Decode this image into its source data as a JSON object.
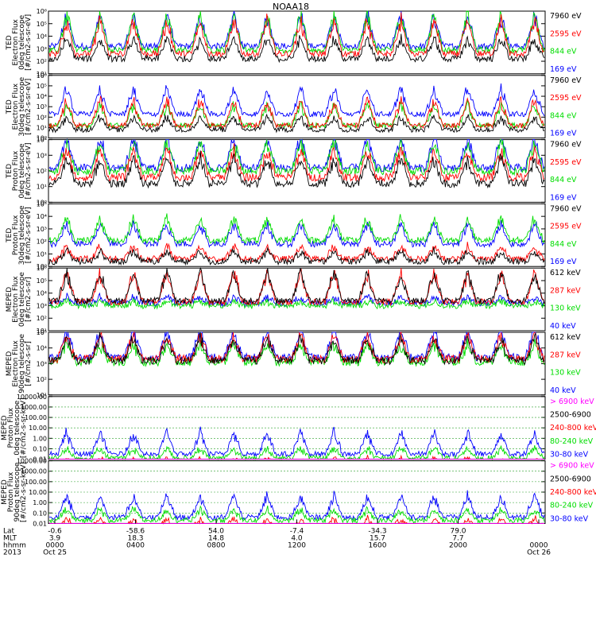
{
  "title": "NOAA18",
  "colors": {
    "black": "#000000",
    "red": "#ff0000",
    "green": "#00dd00",
    "blue": "#0000ff",
    "magenta": "#ff00ff",
    "grid": "#2aa02a"
  },
  "chart_data": [
    {
      "type": "line",
      "title": "NOAA18",
      "ylabel": [
        "TED",
        "Electron Flux",
        "0deg telescope",
        "[#/cm2-s-sr-eV]"
      ],
      "yscale": "log",
      "ylim": [
        10,
        1000000
      ],
      "yticks": [
        "10¹",
        "10²",
        "10³",
        "10⁴",
        "10⁵",
        "10⁶"
      ],
      "grid": false,
      "legend_position": "right",
      "series": [
        {
          "name": "7960 eV",
          "color": "#000000",
          "base": 1.2,
          "spike": 2.0
        },
        {
          "name": "2595 eV",
          "color": "#ff0000",
          "base": 1.6,
          "spike": 3.2
        },
        {
          "name": "844 eV",
          "color": "#00dd00",
          "base": 1.9,
          "spike": 3.5
        },
        {
          "name": "169 eV",
          "color": "#0000ff",
          "base": 2.2,
          "spike": 3.0
        }
      ]
    },
    {
      "type": "line",
      "title": "",
      "ylabel": [
        "TED",
        "Electron Flux",
        "30deg telescope",
        "[#/cm2-s-sr-eV]"
      ],
      "yscale": "log",
      "ylim": [
        1,
        1000000
      ],
      "yticks": [
        "10⁰",
        "10¹",
        "10²",
        "10³",
        "10⁴",
        "10⁵",
        "10⁶"
      ],
      "grid": false,
      "legend_position": "right",
      "series": [
        {
          "name": "7960 eV",
          "color": "#000000",
          "base": 0.8,
          "spike": 1.5
        },
        {
          "name": "2595 eV",
          "color": "#ff0000",
          "base": 1.2,
          "spike": 3.0
        },
        {
          "name": "844 eV",
          "color": "#00dd00",
          "base": 1.2,
          "spike": 2.5
        },
        {
          "name": "169 eV",
          "color": "#0000ff",
          "base": 2.3,
          "spike": 3.0
        }
      ]
    },
    {
      "type": "line",
      "title": "",
      "ylabel": [
        "TED",
        "Proton Flux",
        "0deg telescope",
        "[#/cm2-s-sr-eV]"
      ],
      "yscale": "log",
      "ylim": [
        1,
        10000
      ],
      "yticks": [
        "10⁰",
        "10¹",
        "10²",
        "10³",
        "10⁴"
      ],
      "grid": false,
      "legend_position": "right",
      "series": [
        {
          "name": "7960 eV",
          "color": "#000000",
          "base": 1.2,
          "spike": 2.0
        },
        {
          "name": "2595 eV",
          "color": "#ff0000",
          "base": 1.6,
          "spike": 2.2
        },
        {
          "name": "844 eV",
          "color": "#00dd00",
          "base": 2.0,
          "spike": 2.3
        },
        {
          "name": "169 eV",
          "color": "#0000ff",
          "base": 2.2,
          "spike": 2.4
        }
      ]
    },
    {
      "type": "line",
      "title": "",
      "ylabel": [
        "TED",
        "Proton Flux",
        "30deg telescope",
        "[#/cm2-s-sr-eV]"
      ],
      "yscale": "log",
      "ylim": [
        1,
        100000
      ],
      "yticks": [
        "10⁰",
        "10¹",
        "10²",
        "10³",
        "10⁴",
        "10⁵"
      ],
      "grid": false,
      "legend_position": "right",
      "series": [
        {
          "name": "7960 eV",
          "color": "#000000",
          "base": 0.4,
          "spike": 1.0
        },
        {
          "name": "2595 eV",
          "color": "#ff0000",
          "base": 0.6,
          "spike": 1.2
        },
        {
          "name": "844 eV",
          "color": "#00dd00",
          "base": 2.1,
          "spike": 2.2
        },
        {
          "name": "169 eV",
          "color": "#0000ff",
          "base": 1.8,
          "spike": 2.0
        }
      ]
    },
    {
      "type": "line",
      "title": "",
      "ylabel": [
        "MEPED",
        "Electron Flux",
        "0deg telescope",
        "[#/cm2-s-sr]"
      ],
      "yscale": "log",
      "ylim": [
        10,
        1000000
      ],
      "yticks": [
        "10¹",
        "10²",
        "10³",
        "10⁴",
        "10⁵",
        "10⁶"
      ],
      "grid": false,
      "legend_position": "right",
      "series": [
        {
          "name": "612 keV",
          "color": "#000000",
          "base": 2.4,
          "spike": 2.8
        },
        {
          "name": "287 keV",
          "color": "#ff0000",
          "base": 2.3,
          "spike": 2.9
        },
        {
          "name": "130 keV",
          "color": "#00dd00",
          "base": 2.0,
          "spike": 0.4
        },
        {
          "name": "40 keV",
          "color": "#0000ff",
          "base": 2.2,
          "spike": 0.6
        }
      ]
    },
    {
      "type": "line",
      "title": "",
      "ylabel": [
        "MEPED",
        "Electron Flux",
        "90deg telescope",
        "[#/cm2-s-sr]"
      ],
      "yscale": "log",
      "ylim": [
        10,
        100000
      ],
      "yticks": [
        "10¹",
        "10²",
        "10³",
        "10⁴",
        "10⁵"
      ],
      "grid": false,
      "legend_position": "right",
      "series": [
        {
          "name": "612 keV",
          "color": "#000000",
          "base": 2.2,
          "spike": 1.8
        },
        {
          "name": "287 keV",
          "color": "#ff0000",
          "base": 2.3,
          "spike": 1.9
        },
        {
          "name": "130 keV",
          "color": "#00dd00",
          "base": 2.1,
          "spike": 1.4
        },
        {
          "name": "40 keV",
          "color": "#0000ff",
          "base": 2.4,
          "spike": 2.2
        }
      ]
    },
    {
      "type": "line",
      "title": "",
      "ylabel": [
        "MEPED",
        "Proton Flux",
        "0deg telescope",
        "[#/cm2-s-sr-keV]"
      ],
      "yscale": "log",
      "ylim": [
        0.01,
        10000
      ],
      "yticks": [
        "0.01",
        "0.10",
        "1.00",
        "10.00",
        "100.00",
        "1000.00",
        "10000.00"
      ],
      "grid": true,
      "legend_position": "right",
      "series": [
        {
          "name": "> 6900 keV",
          "color": "#ff00ff",
          "base": -1.2,
          "spike": 0.4
        },
        {
          "name": "2500-6900",
          "color": "#000000",
          "base": -1.0,
          "spike": 0.6
        },
        {
          "name": "240-800 keV",
          "color": "#ff0000",
          "base": -0.7,
          "spike": 1.0
        },
        {
          "name": "80-240 keV",
          "color": "#00dd00",
          "base": 0.1,
          "spike": 1.2
        },
        {
          "name": "30-80 keV",
          "color": "#0000ff",
          "base": 0.5,
          "spike": 2.5
        }
      ]
    },
    {
      "type": "line",
      "title": "",
      "ylabel": [
        "MEPED",
        "Proton Flux",
        "90deg telescope",
        "[#/cm2-s-sr-keV]"
      ],
      "yscale": "log",
      "ylim": [
        0.01,
        10000
      ],
      "yticks": [
        "0.01",
        "0.10",
        "1.00",
        "10.00",
        "100.00",
        "1000.00",
        "10000.00"
      ],
      "grid": true,
      "legend_position": "right",
      "series": [
        {
          "name": "> 6900 keV",
          "color": "#ff00ff",
          "base": -1.2,
          "spike": 0.5
        },
        {
          "name": "2500-6900",
          "color": "#000000",
          "base": -0.9,
          "spike": 0.7
        },
        {
          "name": "240-800 keV",
          "color": "#ff0000",
          "base": -0.5,
          "spike": 1.2
        },
        {
          "name": "80-240 keV",
          "color": "#00dd00",
          "base": 0.3,
          "spike": 1.3
        },
        {
          "name": "30-80 keV",
          "color": "#0000ff",
          "base": 0.6,
          "spike": 2.5
        }
      ]
    }
  ],
  "x_axis": {
    "row_labels": [
      "Lat",
      "MLT",
      "hhmm",
      "2013"
    ],
    "ticks": [
      {
        "lat": "-0.6",
        "mlt": "3.9",
        "hhmm": "0000",
        "date": "Oct 25"
      },
      {
        "lat": "-58.6",
        "mlt": "18.3",
        "hhmm": "0400",
        "date": ""
      },
      {
        "lat": "54.0",
        "mlt": "14.8",
        "hhmm": "0800",
        "date": ""
      },
      {
        "lat": "-7.4",
        "mlt": "4.0",
        "hhmm": "1200",
        "date": ""
      },
      {
        "lat": "-34.3",
        "mlt": "15.7",
        "hhmm": "1600",
        "date": ""
      },
      {
        "lat": "79.0",
        "mlt": "7.7",
        "hhmm": "2000",
        "date": ""
      },
      {
        "lat": "",
        "mlt": "",
        "hhmm": "0000",
        "date": "Oct 26"
      }
    ]
  }
}
